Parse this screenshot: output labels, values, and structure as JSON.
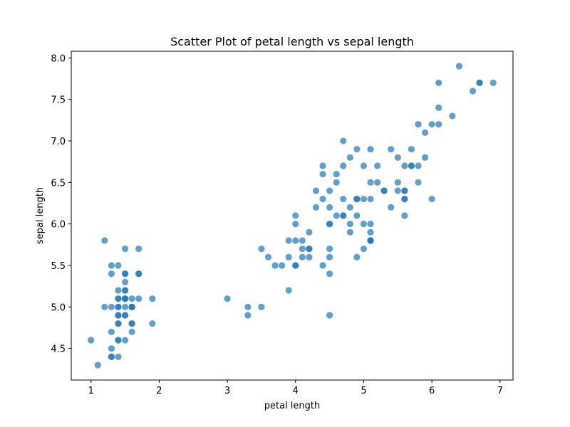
{
  "chart_data": {
    "type": "scatter",
    "title": "Scatter Plot of petal length vs sepal length",
    "xlabel": "petal length",
    "ylabel": "sepal length",
    "xlim": [
      0.71,
      7.19
    ],
    "ylim": [
      4.12,
      8.08
    ],
    "xticks": [
      1,
      2,
      3,
      4,
      5,
      6,
      7
    ],
    "yticks": [
      4.5,
      5.0,
      5.5,
      6.0,
      6.5,
      7.0,
      7.5,
      8.0
    ],
    "xtick_labels": [
      "1",
      "2",
      "3",
      "4",
      "5",
      "6",
      "7"
    ],
    "ytick_labels": [
      "4.5",
      "5.0",
      "5.5",
      "6.0",
      "6.5",
      "7.0",
      "7.5",
      "8.0"
    ],
    "grid": false,
    "marker_color": "#1f77b4",
    "marker_alpha": 0.7,
    "points": [
      [
        1.4,
        5.1
      ],
      [
        1.4,
        4.9
      ],
      [
        1.3,
        4.7
      ],
      [
        1.5,
        4.6
      ],
      [
        1.4,
        5.0
      ],
      [
        1.7,
        5.4
      ],
      [
        1.4,
        4.6
      ],
      [
        1.5,
        5.0
      ],
      [
        1.4,
        4.4
      ],
      [
        1.5,
        4.9
      ],
      [
        1.5,
        5.4
      ],
      [
        1.6,
        4.8
      ],
      [
        1.4,
        4.8
      ],
      [
        1.1,
        4.3
      ],
      [
        1.2,
        5.8
      ],
      [
        1.5,
        5.7
      ],
      [
        1.3,
        5.4
      ],
      [
        1.4,
        5.1
      ],
      [
        1.7,
        5.7
      ],
      [
        1.5,
        5.1
      ],
      [
        1.7,
        5.4
      ],
      [
        1.5,
        5.1
      ],
      [
        1.0,
        4.6
      ],
      [
        1.7,
        5.1
      ],
      [
        1.9,
        4.8
      ],
      [
        1.6,
        5.0
      ],
      [
        1.6,
        5.0
      ],
      [
        1.5,
        5.2
      ],
      [
        1.4,
        5.2
      ],
      [
        1.6,
        4.7
      ],
      [
        1.6,
        4.8
      ],
      [
        1.5,
        5.4
      ],
      [
        1.5,
        5.2
      ],
      [
        1.4,
        5.5
      ],
      [
        1.5,
        4.9
      ],
      [
        1.2,
        5.0
      ],
      [
        1.3,
        5.5
      ],
      [
        1.4,
        4.9
      ],
      [
        1.3,
        4.4
      ],
      [
        1.5,
        5.1
      ],
      [
        1.3,
        5.0
      ],
      [
        1.3,
        4.5
      ],
      [
        1.3,
        4.4
      ],
      [
        1.6,
        5.0
      ],
      [
        1.9,
        5.1
      ],
      [
        1.4,
        4.8
      ],
      [
        1.6,
        5.1
      ],
      [
        1.4,
        4.6
      ],
      [
        1.5,
        5.3
      ],
      [
        1.4,
        5.0
      ],
      [
        4.7,
        7.0
      ],
      [
        4.5,
        6.4
      ],
      [
        4.9,
        6.9
      ],
      [
        4.0,
        5.5
      ],
      [
        4.6,
        6.5
      ],
      [
        4.5,
        5.7
      ],
      [
        4.7,
        6.3
      ],
      [
        3.3,
        4.9
      ],
      [
        4.6,
        6.6
      ],
      [
        3.9,
        5.2
      ],
      [
        3.5,
        5.0
      ],
      [
        4.2,
        5.9
      ],
      [
        4.0,
        6.0
      ],
      [
        4.7,
        6.1
      ],
      [
        3.6,
        5.6
      ],
      [
        4.4,
        6.7
      ],
      [
        4.5,
        5.6
      ],
      [
        4.1,
        5.8
      ],
      [
        4.5,
        6.2
      ],
      [
        3.9,
        5.6
      ],
      [
        4.8,
        5.9
      ],
      [
        4.0,
        6.1
      ],
      [
        4.9,
        6.3
      ],
      [
        4.7,
        6.1
      ],
      [
        4.3,
        6.4
      ],
      [
        4.4,
        6.6
      ],
      [
        4.8,
        6.8
      ],
      [
        5.0,
        6.7
      ],
      [
        4.5,
        6.0
      ],
      [
        3.5,
        5.7
      ],
      [
        3.8,
        5.5
      ],
      [
        3.7,
        5.5
      ],
      [
        3.9,
        5.8
      ],
      [
        5.1,
        6.0
      ],
      [
        4.5,
        5.4
      ],
      [
        4.5,
        6.0
      ],
      [
        4.7,
        6.7
      ],
      [
        4.4,
        6.3
      ],
      [
        4.1,
        5.6
      ],
      [
        4.0,
        5.5
      ],
      [
        4.4,
        5.5
      ],
      [
        4.6,
        6.1
      ],
      [
        4.0,
        5.8
      ],
      [
        3.3,
        5.0
      ],
      [
        4.2,
        5.6
      ],
      [
        4.2,
        5.7
      ],
      [
        4.2,
        5.7
      ],
      [
        4.3,
        6.2
      ],
      [
        3.0,
        5.1
      ],
      [
        4.1,
        5.7
      ],
      [
        6.0,
        6.3
      ],
      [
        5.1,
        5.8
      ],
      [
        5.9,
        7.1
      ],
      [
        5.6,
        6.3
      ],
      [
        5.8,
        6.5
      ],
      [
        6.6,
        7.6
      ],
      [
        4.5,
        4.9
      ],
      [
        6.3,
        7.3
      ],
      [
        5.8,
        6.7
      ],
      [
        6.1,
        7.2
      ],
      [
        5.1,
        6.5
      ],
      [
        5.3,
        6.4
      ],
      [
        5.5,
        6.8
      ],
      [
        5.0,
        5.7
      ],
      [
        5.1,
        5.8
      ],
      [
        5.3,
        6.4
      ],
      [
        5.5,
        6.5
      ],
      [
        6.7,
        7.7
      ],
      [
        6.9,
        7.7
      ],
      [
        5.0,
        6.0
      ],
      [
        5.7,
        6.9
      ],
      [
        4.9,
        5.6
      ],
      [
        6.7,
        7.7
      ],
      [
        4.9,
        6.3
      ],
      [
        5.7,
        6.7
      ],
      [
        6.0,
        7.2
      ],
      [
        4.8,
        6.2
      ],
      [
        4.9,
        6.1
      ],
      [
        5.6,
        6.4
      ],
      [
        5.8,
        7.2
      ],
      [
        6.1,
        7.4
      ],
      [
        6.4,
        7.9
      ],
      [
        5.6,
        6.4
      ],
      [
        5.1,
        6.3
      ],
      [
        5.6,
        6.1
      ],
      [
        6.1,
        7.7
      ],
      [
        5.6,
        6.3
      ],
      [
        5.5,
        6.4
      ],
      [
        4.8,
        6.0
      ],
      [
        5.4,
        6.9
      ],
      [
        5.6,
        6.7
      ],
      [
        5.1,
        6.9
      ],
      [
        5.1,
        5.8
      ],
      [
        5.9,
        6.8
      ],
      [
        5.7,
        6.7
      ],
      [
        5.2,
        6.7
      ],
      [
        5.0,
        6.3
      ],
      [
        5.2,
        6.5
      ],
      [
        5.4,
        6.2
      ],
      [
        5.1,
        5.9
      ]
    ]
  }
}
